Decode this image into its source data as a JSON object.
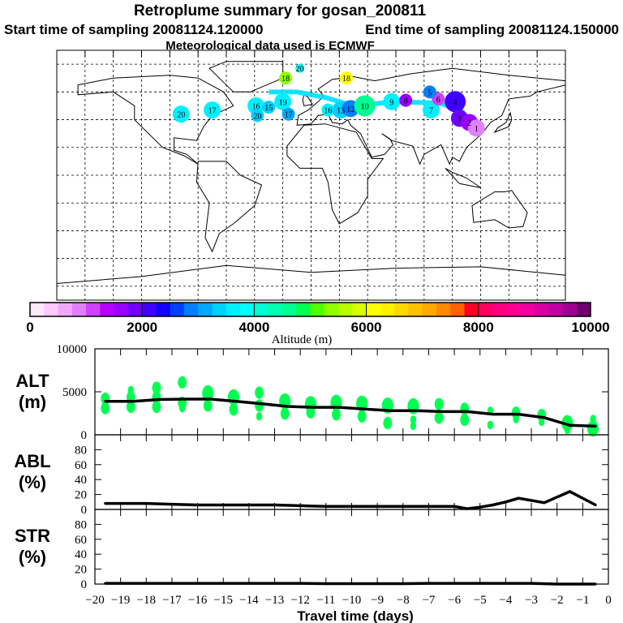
{
  "header": {
    "title": "Retroplume summary for gosan_200811",
    "start_time": "Start time of sampling 20081124.120000",
    "end_time": "End time of sampling 20081124.150000",
    "met_data": "Meteorological data used is ECMWF"
  },
  "map": {
    "lon_range": [
      -180,
      180
    ],
    "lat_range": [
      -90,
      90
    ],
    "grid_spacing_deg": 20,
    "plume_markers": [
      {
        "label": "20",
        "lon": -92,
        "lat": 44,
        "alt": 3700,
        "size": 3
      },
      {
        "label": "17",
        "lon": -70,
        "lat": 47,
        "alt": 3600,
        "size": 3
      },
      {
        "label": "16",
        "lon": -39,
        "lat": 50,
        "alt": 3500,
        "size": 3
      },
      {
        "label": "15",
        "lon": -30,
        "lat": 49,
        "alt": 3300,
        "size": 2
      },
      {
        "label": "20",
        "lon": -38,
        "lat": 43,
        "alt": 3400,
        "size": 2
      },
      {
        "label": "19",
        "lon": -20,
        "lat": 53,
        "alt": 3700,
        "size": 3
      },
      {
        "label": "17",
        "lon": -16,
        "lat": 44,
        "alt": 3100,
        "size": 2
      },
      {
        "label": "18",
        "lon": -18,
        "lat": 70,
        "alt": 5400,
        "size": 2
      },
      {
        "label": "20",
        "lon": -8,
        "lat": 77,
        "alt": 3800,
        "size": 1
      },
      {
        "label": "18",
        "lon": 25,
        "lat": 70,
        "alt": 6100,
        "size": 2
      },
      {
        "label": "16",
        "lon": 12,
        "lat": 47,
        "alt": 3700,
        "size": 2
      },
      {
        "label": "13",
        "lon": 21,
        "lat": 47,
        "alt": 3300,
        "size": 3
      },
      {
        "label": "12",
        "lon": 28,
        "lat": 48,
        "alt": 2800,
        "size": 3
      },
      {
        "label": "10",
        "lon": 38,
        "lat": 50,
        "alt": 4700,
        "size": 4
      },
      {
        "label": "9",
        "lon": 57,
        "lat": 53,
        "alt": 3600,
        "size": 3
      },
      {
        "label": "8",
        "lon": 67,
        "lat": 54,
        "alt": 1700,
        "size": 2
      },
      {
        "label": "7",
        "lon": 85,
        "lat": 47,
        "alt": 3700,
        "size": 3
      },
      {
        "label": "6",
        "lon": 90,
        "lat": 55,
        "alt": 1100,
        "size": 2
      },
      {
        "label": "5",
        "lon": 84,
        "lat": 60,
        "alt": 2800,
        "size": 2
      },
      {
        "label": "4",
        "lon": 102,
        "lat": 53,
        "alt": 2200,
        "size": 4
      },
      {
        "label": "3",
        "lon": 105,
        "lat": 41,
        "alt": 1900,
        "size": 3
      },
      {
        "label": "2",
        "lon": 112,
        "lat": 38,
        "alt": 1700,
        "size": 3
      },
      {
        "label": "1",
        "lon": 117,
        "lat": 34,
        "alt": 900,
        "size": 3
      }
    ]
  },
  "colorbar": {
    "label": "Altitude (m)",
    "ticks": [
      "0",
      "2000",
      "4000",
      "6000",
      "8000",
      "10000"
    ],
    "range": [
      0,
      10000
    ],
    "colors": [
      "#ffe8ff",
      "#ffc8ff",
      "#f0a8ff",
      "#e080ff",
      "#d040ff",
      "#b800ff",
      "#9800ff",
      "#7000ff",
      "#4000ff",
      "#1000ff",
      "#0040ff",
      "#0080ff",
      "#00a8ff",
      "#00d0ff",
      "#00f0ff",
      "#00ffff",
      "#00ffd0",
      "#00ffb0",
      "#00ff90",
      "#00ff50",
      "#50ff00",
      "#90ff00",
      "#b8ff00",
      "#d8ff00",
      "#ffff00",
      "#fff000",
      "#ffd800",
      "#ffc000",
      "#ffa800",
      "#ff8800",
      "#ff6000",
      "#ff0020",
      "#ff0060",
      "#ff0080",
      "#ff0090",
      "#f000a0",
      "#d800a0",
      "#c000a0",
      "#a00090",
      "#700070"
    ]
  },
  "chart_data": [
    {
      "type": "line",
      "title": "ALT",
      "ylabel": [
        "ALT",
        "(m)"
      ],
      "ylim": [
        0,
        10000
      ],
      "yticks": [
        "0",
        "5000",
        "10000"
      ],
      "x": [
        -19.6,
        -18.5,
        -17.5,
        -16.5,
        -15.5,
        -14.5,
        -13.5,
        -12.5,
        -11.5,
        -10.5,
        -9.5,
        -8.5,
        -7.5,
        -6.5,
        -5.5,
        -4.5,
        -3.5,
        -2.5,
        -1.5,
        -0.5
      ],
      "values": [
        3900,
        3900,
        4100,
        4150,
        4150,
        3900,
        3600,
        3300,
        3200,
        3200,
        3000,
        2800,
        2800,
        2700,
        2700,
        2400,
        2400,
        2000,
        1100,
        1000
      ],
      "line_color": "#000000",
      "scatter_color": "#00ff50",
      "particles": [
        [
          -19.6,
          4200,
          2
        ],
        [
          -19.6,
          3100,
          2
        ],
        [
          -18.6,
          4360,
          2
        ],
        [
          -18.6,
          3250,
          2
        ],
        [
          -18.6,
          5200,
          1
        ],
        [
          -17.6,
          5470,
          2
        ],
        [
          -17.6,
          4360,
          2
        ],
        [
          -17.6,
          3250,
          2
        ],
        [
          -16.6,
          6100,
          2
        ],
        [
          -16.6,
          3730,
          2
        ],
        [
          -16.6,
          3100,
          1
        ],
        [
          -15.6,
          4830,
          3
        ],
        [
          -15.6,
          3400,
          2
        ],
        [
          -14.6,
          4360,
          3
        ],
        [
          -14.6,
          2940,
          2
        ],
        [
          -13.6,
          4900,
          2
        ],
        [
          -13.6,
          3400,
          2
        ],
        [
          -13.6,
          2150,
          1
        ],
        [
          -12.6,
          3890,
          3
        ],
        [
          -12.6,
          2460,
          2
        ],
        [
          -11.6,
          3570,
          3
        ],
        [
          -11.6,
          2620,
          2
        ],
        [
          -10.6,
          3730,
          3
        ],
        [
          -10.6,
          2370,
          2
        ],
        [
          -9.6,
          3630,
          3
        ],
        [
          -9.6,
          2150,
          2
        ],
        [
          -8.6,
          3400,
          3
        ],
        [
          -8.6,
          1360,
          2
        ],
        [
          -7.6,
          3320,
          3
        ],
        [
          -7.6,
          1740,
          1
        ],
        [
          -7.6,
          1040,
          1
        ],
        [
          -6.6,
          3570,
          2
        ],
        [
          -6.6,
          1990,
          2
        ],
        [
          -5.6,
          3030,
          2
        ],
        [
          -5.6,
          1740,
          2
        ],
        [
          -4.6,
          2780,
          1
        ],
        [
          -4.6,
          1140,
          1
        ],
        [
          -3.6,
          2560,
          2
        ],
        [
          -3.6,
          1830,
          1
        ],
        [
          -2.6,
          2300,
          2
        ],
        [
          -2.6,
          1520,
          1
        ],
        [
          -1.6,
          1360,
          3
        ],
        [
          -1.6,
          570,
          1
        ],
        [
          -0.6,
          730,
          3
        ],
        [
          -0.6,
          1830,
          1
        ]
      ]
    },
    {
      "type": "line",
      "title": "ABL",
      "ylabel": [
        "ABL",
        "(%)"
      ],
      "ylim": [
        0,
        100
      ],
      "yticks": [
        "0",
        "20",
        "40",
        "60",
        "80"
      ],
      "x": [
        -19.6,
        -18,
        -17,
        -16,
        -15,
        -14,
        -13,
        -12,
        -11,
        -10,
        -9,
        -8,
        -7,
        -6,
        -5.5,
        -5,
        -4.5,
        -4,
        -3.5,
        -2.5,
        -1.5,
        -0.5
      ],
      "values": [
        8,
        8,
        7,
        6,
        6,
        6,
        6,
        5,
        4,
        4,
        4,
        4,
        4,
        4,
        1,
        3,
        6,
        10,
        15,
        9,
        24,
        6
      ],
      "line_color": "#000000"
    },
    {
      "type": "line",
      "title": "STR",
      "ylabel": [
        "STR",
        "(%)"
      ],
      "ylim": [
        0,
        100
      ],
      "yticks": [
        "0",
        "20",
        "40",
        "60",
        "80"
      ],
      "x": [
        -19.6,
        -12,
        -11,
        -8,
        -7,
        -3,
        -2,
        -0.5
      ],
      "values": [
        1,
        1,
        0.5,
        0.5,
        1,
        1,
        0,
        0
      ],
      "line_color": "#000000"
    }
  ],
  "xaxis": {
    "label": "Travel time (days)",
    "range": [
      -20,
      0
    ],
    "ticks": [
      "−20",
      "−19",
      "−18",
      "−17",
      "−16",
      "−15",
      "−14",
      "−13",
      "−12",
      "−11",
      "−10",
      "−9",
      "−8",
      "−7",
      "−6",
      "−5",
      "−4",
      "−3",
      "−2",
      "−1",
      "0"
    ]
  }
}
